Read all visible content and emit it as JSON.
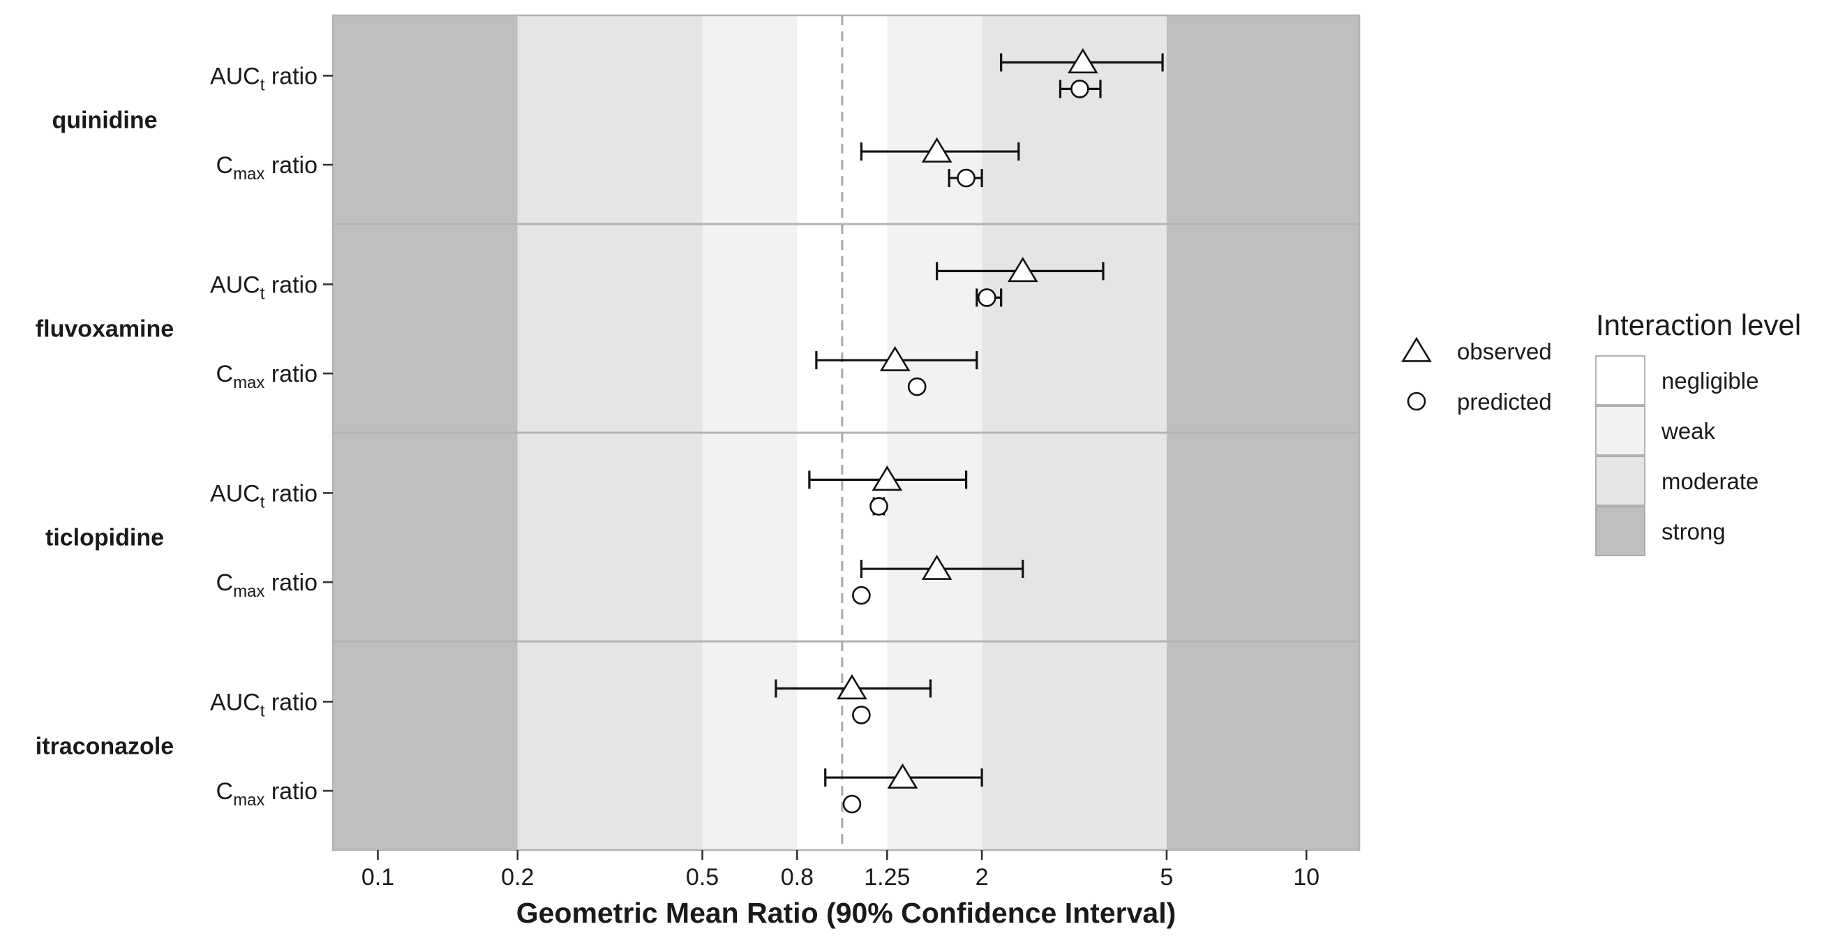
{
  "chart_data": {
    "type": "forest",
    "xlabel": "Geometric Mean Ratio (90% Confidence Interval)",
    "x_scale": "log",
    "xlim": [
      0.08,
      13
    ],
    "x_ticks": [
      {
        "value": 0.1,
        "label": "0.1"
      },
      {
        "value": 0.2,
        "label": "0.2"
      },
      {
        "value": 0.5,
        "label": "0.5"
      },
      {
        "value": 0.8,
        "label": "0.8"
      },
      {
        "value": 1.25,
        "label": "1.25"
      },
      {
        "value": 2,
        "label": "2"
      },
      {
        "value": 5,
        "label": "5"
      },
      {
        "value": 10,
        "label": "10"
      }
    ],
    "reference_line": 1,
    "interaction_bands": [
      {
        "level": "strong",
        "from": 0.08,
        "to": 0.2,
        "color": "#bfbfbf"
      },
      {
        "level": "moderate",
        "from": 0.2,
        "to": 0.5,
        "color": "#e5e5e5"
      },
      {
        "level": "weak",
        "from": 0.5,
        "to": 0.8,
        "color": "#f2f2f2"
      },
      {
        "level": "negligible",
        "from": 0.8,
        "to": 1.25,
        "color": "#ffffff"
      },
      {
        "level": "weak",
        "from": 1.25,
        "to": 2,
        "color": "#f2f2f2"
      },
      {
        "level": "moderate",
        "from": 2,
        "to": 5,
        "color": "#e5e5e5"
      },
      {
        "level": "strong",
        "from": 5,
        "to": 13,
        "color": "#bfbfbf"
      }
    ],
    "row_labels": {
      "auc": {
        "main": "AUC",
        "sub": "t",
        "suffix": " ratio"
      },
      "cmax": {
        "main": "C",
        "sub": "max",
        "suffix": " ratio"
      }
    },
    "groups": [
      {
        "drug": "quinidine",
        "rows": [
          {
            "metric": "auc",
            "observed": {
              "gmr": 3.3,
              "lo": 2.2,
              "hi": 4.9
            },
            "predicted": {
              "gmr": 3.25,
              "lo": 2.95,
              "hi": 3.6
            }
          },
          {
            "metric": "cmax",
            "observed": {
              "gmr": 1.6,
              "lo": 1.1,
              "hi": 2.4
            },
            "predicted": {
              "gmr": 1.85,
              "lo": 1.7,
              "hi": 2.0
            }
          }
        ]
      },
      {
        "drug": "fluvoxamine",
        "rows": [
          {
            "metric": "auc",
            "observed": {
              "gmr": 2.45,
              "lo": 1.6,
              "hi": 3.65
            },
            "predicted": {
              "gmr": 2.05,
              "lo": 1.95,
              "hi": 2.2
            }
          },
          {
            "metric": "cmax",
            "observed": {
              "gmr": 1.3,
              "lo": 0.88,
              "hi": 1.95
            },
            "predicted": {
              "gmr": 1.45
            }
          }
        ]
      },
      {
        "drug": "ticlopidine",
        "rows": [
          {
            "metric": "auc",
            "observed": {
              "gmr": 1.25,
              "lo": 0.85,
              "hi": 1.85
            },
            "predicted": {
              "gmr": 1.2,
              "lo": 1.17,
              "hi": 1.23
            }
          },
          {
            "metric": "cmax",
            "observed": {
              "gmr": 1.6,
              "lo": 1.1,
              "hi": 2.45
            },
            "predicted": {
              "gmr": 1.1
            }
          }
        ]
      },
      {
        "drug": "itraconazole",
        "rows": [
          {
            "metric": "auc",
            "observed": {
              "gmr": 1.05,
              "lo": 0.72,
              "hi": 1.55
            },
            "predicted": {
              "gmr": 1.1
            }
          },
          {
            "metric": "cmax",
            "observed": {
              "gmr": 1.35,
              "lo": 0.92,
              "hi": 2.0
            },
            "predicted": {
              "gmr": 1.05
            }
          }
        ]
      }
    ],
    "shape_legend": [
      {
        "key": "observed",
        "label": "observed",
        "shape": "triangle"
      },
      {
        "key": "predicted",
        "label": "predicted",
        "shape": "circle"
      }
    ],
    "fill_legend": {
      "title": "Interaction level",
      "items": [
        {
          "label": "negligible",
          "color": "#ffffff"
        },
        {
          "label": "weak",
          "color": "#f2f2f2"
        },
        {
          "label": "moderate",
          "color": "#e5e5e5"
        },
        {
          "label": "strong",
          "color": "#bfbfbf"
        }
      ]
    }
  }
}
